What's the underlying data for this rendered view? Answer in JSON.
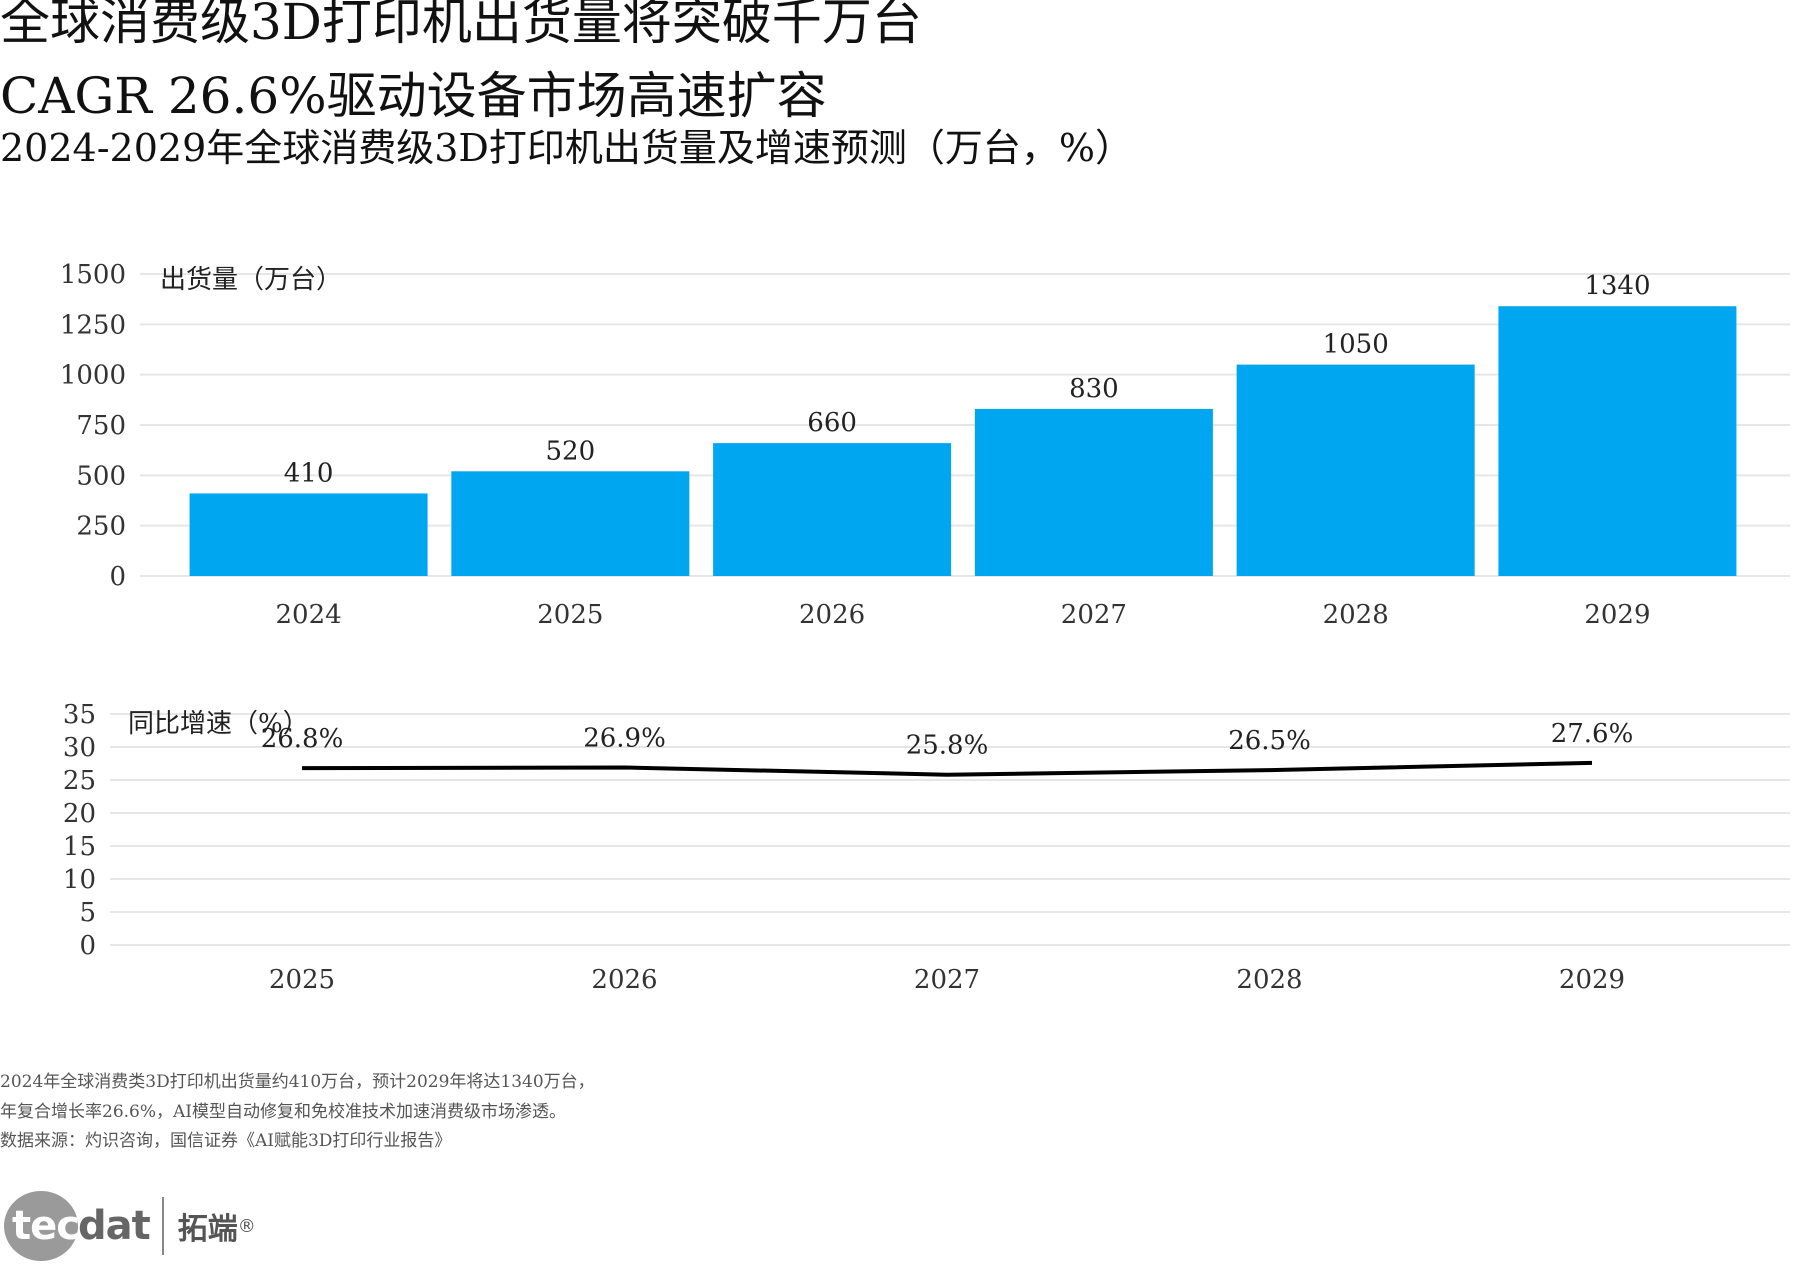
{
  "title": "全球消费级3D打印机出货量将突破千万台",
  "subtitle": "CAGR 26.6%驱动设备市场高速扩容",
  "subtitle2": "2024-2029年全球消费级3D打印机出货量及增速预测（万台，%）",
  "chart_data": [
    {
      "type": "bar",
      "ylabel": "出货量（万台）",
      "categories": [
        "2024",
        "2025",
        "2026",
        "2027",
        "2028",
        "2029"
      ],
      "values": [
        410,
        520,
        660,
        830,
        1050,
        1340
      ],
      "ylim": [
        0,
        1500
      ],
      "yticks": [
        0,
        250,
        500,
        750,
        1000,
        1250,
        1500
      ],
      "grid": true,
      "bar_color": "#00A6F0"
    },
    {
      "type": "line",
      "ylabel": "同比增速（%）",
      "categories": [
        "2025",
        "2026",
        "2027",
        "2028",
        "2029"
      ],
      "values": [
        26.8,
        26.9,
        25.8,
        26.5,
        27.6
      ],
      "labels": [
        "26.8%",
        "26.9%",
        "25.8%",
        "26.5%",
        "27.6%"
      ],
      "ylim": [
        0,
        35
      ],
      "yticks": [
        0,
        5,
        10,
        15,
        20,
        25,
        30,
        35
      ],
      "grid": true,
      "line_color": "#000000"
    }
  ],
  "notes": [
    "2024年全球消费类3D打印机出货量约410万台，预计2029年将达1340万台，",
    "年复合增长率26.6%，AI模型自动修复和免校准技术加速消费级市场渗透。",
    "数据来源：灼识咨询，国信证券《AI赋能3D打印行业报告》"
  ],
  "logo": {
    "tec": "tec",
    "dat": "dat",
    "cn": "拓端",
    "reg": "®"
  }
}
